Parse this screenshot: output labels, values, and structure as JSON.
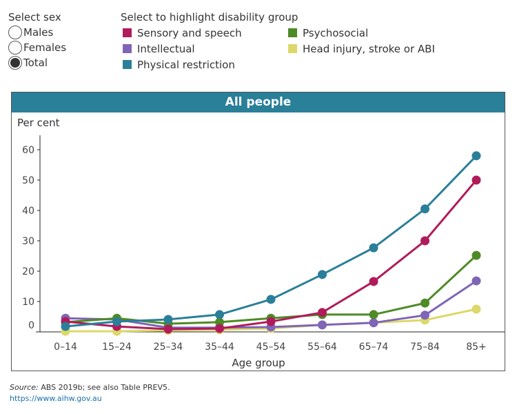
{
  "controls": {
    "sex_title": "Select sex",
    "sex_options": [
      {
        "label": "Males",
        "selected": false
      },
      {
        "label": "Females",
        "selected": false
      },
      {
        "label": "Total",
        "selected": true
      }
    ],
    "group_title": "Select to highlight disability group"
  },
  "chart_data": {
    "type": "line",
    "title": "All people",
    "ylabel": "Per cent",
    "xlabel": "Age group",
    "categories": [
      "0–14",
      "15–24",
      "25–34",
      "35–44",
      "45–54",
      "55–64",
      "65–74",
      "75–84",
      "85+"
    ],
    "yticks": [
      0,
      10,
      20,
      30,
      40,
      50,
      60
    ],
    "ylim": [
      0,
      65
    ],
    "grid": false,
    "series": [
      {
        "name": "Sensory and speech",
        "color": "#b01c5b",
        "values": [
          3.4,
          1.8,
          0.9,
          1.1,
          3.4,
          6.4,
          16.6,
          30.0,
          50.0
        ]
      },
      {
        "name": "Intellectual",
        "color": "#7f65b7",
        "values": [
          4.5,
          4.1,
          1.4,
          1.4,
          1.6,
          2.3,
          3.0,
          5.5,
          16.8
        ]
      },
      {
        "name": "Physical restriction",
        "color": "#2a7f99",
        "values": [
          1.8,
          3.4,
          4.1,
          5.7,
          10.7,
          18.9,
          27.7,
          40.5,
          58.0
        ]
      },
      {
        "name": "Psychosocial",
        "color": "#4e8a25",
        "values": [
          3.2,
          4.5,
          2.7,
          3.2,
          4.5,
          5.7,
          5.7,
          9.5,
          25.2
        ]
      },
      {
        "name": "Head injury, stroke or ABI",
        "color": "#dcd86a",
        "values": [
          0.2,
          0.2,
          0.5,
          0.7,
          1.1,
          2.3,
          3.0,
          3.9,
          7.5
        ]
      }
    ]
  },
  "footer": {
    "source_label": "Source:",
    "source_text": " ABS 2019b; see also Table PREV5.",
    "link": "https://www.aihw.gov.au"
  }
}
